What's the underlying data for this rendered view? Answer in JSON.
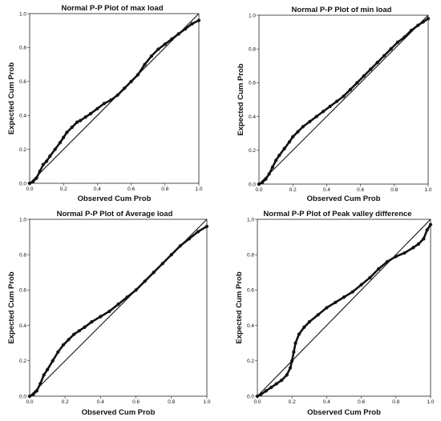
{
  "chart_data": [
    {
      "type": "scatter",
      "title": "Normal P-P Plot of max load",
      "xlabel": "Observed Cum Prob",
      "ylabel": "Expected Cum Prob",
      "xlim": [
        0,
        1
      ],
      "ylim": [
        0,
        1
      ],
      "x_ticks": [
        "0.0",
        "0.2",
        "0.4",
        "0.6",
        "0.8",
        "1.0"
      ],
      "y_ticks": [
        "0.0",
        "0.2",
        "0.4",
        "0.6",
        "0.8",
        "1.0"
      ],
      "reference_line": [
        [
          0,
          0
        ],
        [
          1,
          1
        ]
      ],
      "grid": false,
      "series": [
        {
          "x": [
            0,
            0.02,
            0.04,
            0.06,
            0.08,
            0.1,
            0.12,
            0.15,
            0.18,
            0.2,
            0.22,
            0.25,
            0.28,
            0.3,
            0.33,
            0.36,
            0.4,
            0.44,
            0.48,
            0.52,
            0.56,
            0.6,
            0.64,
            0.68,
            0.72,
            0.76,
            0.8,
            0.84,
            0.88,
            0.92,
            0.96,
            1.0
          ],
          "y": [
            0,
            0.01,
            0.03,
            0.07,
            0.11,
            0.13,
            0.16,
            0.2,
            0.24,
            0.27,
            0.3,
            0.33,
            0.36,
            0.37,
            0.39,
            0.41,
            0.44,
            0.47,
            0.49,
            0.52,
            0.56,
            0.6,
            0.64,
            0.7,
            0.75,
            0.79,
            0.82,
            0.85,
            0.88,
            0.91,
            0.94,
            0.96
          ]
        }
      ]
    },
    {
      "type": "scatter",
      "title": "Normal P-P Plot of min load",
      "xlabel": "Observed Cum Prob",
      "ylabel": "Expected Cum Prob",
      "xlim": [
        0,
        1
      ],
      "ylim": [
        0,
        1
      ],
      "x_ticks": [
        "0.0",
        "0.2",
        "0.4",
        "0.6",
        "0.8",
        "1.0"
      ],
      "y_ticks": [
        "0.0",
        "0.2",
        "0.4",
        "0.6",
        "0.8",
        "1.0"
      ],
      "reference_line": [
        [
          0,
          0
        ],
        [
          1,
          1
        ]
      ],
      "grid": false,
      "series": [
        {
          "x": [
            0,
            0.02,
            0.04,
            0.06,
            0.08,
            0.1,
            0.12,
            0.15,
            0.18,
            0.2,
            0.23,
            0.26,
            0.3,
            0.34,
            0.38,
            0.42,
            0.46,
            0.5,
            0.54,
            0.58,
            0.62,
            0.66,
            0.7,
            0.74,
            0.78,
            0.82,
            0.86,
            0.9,
            0.94,
            0.97,
            1.0
          ],
          "y": [
            0,
            0.01,
            0.03,
            0.06,
            0.1,
            0.14,
            0.17,
            0.21,
            0.25,
            0.28,
            0.31,
            0.34,
            0.37,
            0.4,
            0.43,
            0.46,
            0.49,
            0.52,
            0.56,
            0.6,
            0.64,
            0.68,
            0.72,
            0.76,
            0.8,
            0.84,
            0.87,
            0.91,
            0.94,
            0.96,
            0.98
          ]
        }
      ]
    },
    {
      "type": "scatter",
      "title": "Normal P-P Plot of Average load",
      "xlabel": "Observed Cum Prob",
      "ylabel": "Expected Cum Prob",
      "xlim": [
        0,
        1
      ],
      "ylim": [
        0,
        1
      ],
      "x_ticks": [
        "0.0",
        "0.2",
        "0.4",
        "0.6",
        "0.8",
        "1.0"
      ],
      "y_ticks": [
        "0.0",
        "0.2",
        "0.4",
        "0.6",
        "0.8",
        "1.0"
      ],
      "reference_line": [
        [
          0,
          0
        ],
        [
          1,
          1
        ]
      ],
      "grid": false,
      "series": [
        {
          "x": [
            0,
            0.02,
            0.04,
            0.06,
            0.08,
            0.1,
            0.13,
            0.16,
            0.19,
            0.22,
            0.25,
            0.28,
            0.31,
            0.35,
            0.4,
            0.45,
            0.5,
            0.55,
            0.6,
            0.65,
            0.7,
            0.75,
            0.8,
            0.85,
            0.9,
            0.95,
            1.0
          ],
          "y": [
            0,
            0.01,
            0.03,
            0.07,
            0.12,
            0.15,
            0.2,
            0.25,
            0.29,
            0.32,
            0.35,
            0.37,
            0.39,
            0.42,
            0.45,
            0.48,
            0.52,
            0.56,
            0.6,
            0.65,
            0.7,
            0.75,
            0.8,
            0.85,
            0.89,
            0.93,
            0.96
          ]
        }
      ]
    },
    {
      "type": "scatter",
      "title": "Normal P-P Plot of Peak valley difference",
      "xlabel": "Observed Cum Prob",
      "ylabel": "Expected Cum Prob",
      "xlim": [
        0,
        1
      ],
      "ylim": [
        0,
        1
      ],
      "x_ticks": [
        "0.0",
        "0.2",
        "0.4",
        "0.6",
        "0.8",
        "1.0"
      ],
      "y_ticks": [
        "0.0",
        "0.2",
        "0.4",
        "0.6",
        "0.8",
        "1.0"
      ],
      "reference_line": [
        [
          0,
          0
        ],
        [
          1,
          1
        ]
      ],
      "grid": false,
      "series": [
        {
          "x": [
            0,
            0.02,
            0.05,
            0.08,
            0.11,
            0.14,
            0.17,
            0.19,
            0.2,
            0.21,
            0.22,
            0.24,
            0.27,
            0.3,
            0.35,
            0.4,
            0.45,
            0.5,
            0.55,
            0.6,
            0.65,
            0.7,
            0.75,
            0.8,
            0.85,
            0.9,
            0.93,
            0.96,
            0.98,
            1.0
          ],
          "y": [
            0,
            0.01,
            0.03,
            0.05,
            0.07,
            0.09,
            0.12,
            0.16,
            0.2,
            0.25,
            0.3,
            0.35,
            0.39,
            0.42,
            0.46,
            0.5,
            0.53,
            0.56,
            0.59,
            0.63,
            0.67,
            0.72,
            0.76,
            0.79,
            0.81,
            0.84,
            0.86,
            0.89,
            0.94,
            0.97
          ]
        }
      ]
    }
  ]
}
